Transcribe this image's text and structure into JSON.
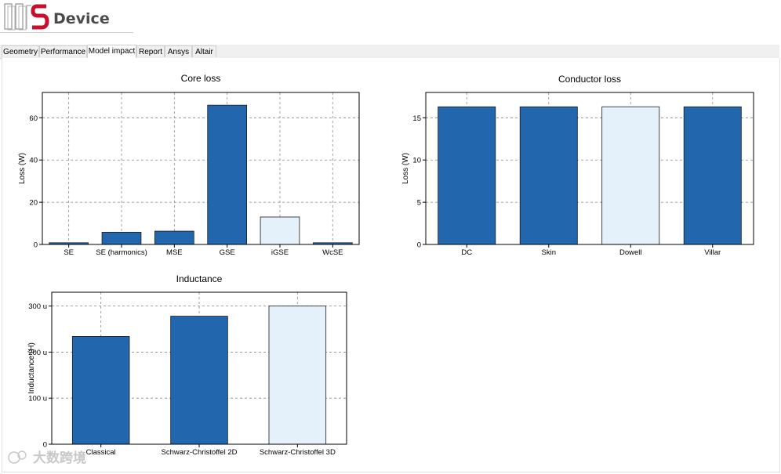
{
  "app": {
    "title": "Device"
  },
  "tabs": [
    {
      "label": "Geometry",
      "active": false
    },
    {
      "label": "Performance",
      "active": false
    },
    {
      "label": "Model impact",
      "active": true
    },
    {
      "label": "Report",
      "active": false
    },
    {
      "label": "Ansys",
      "active": false
    },
    {
      "label": "Altair",
      "active": false
    }
  ],
  "watermark": {
    "text": "大数跨境"
  },
  "colors": {
    "bar_dark": "#2267ad",
    "bar_light": "#e4f1fb",
    "grid": "#8a8a8a"
  },
  "chart_data": [
    {
      "type": "bar",
      "title": "Core loss",
      "ylabel": "Loss (W)",
      "xlabel": "",
      "categories": [
        "SE",
        "SE (harmonics)",
        "MSE",
        "GSE",
        "iGSE",
        "WcSE"
      ],
      "values": [
        0.8,
        5.8,
        6.3,
        66,
        13,
        0.8
      ],
      "highlight": [
        false,
        false,
        false,
        false,
        true,
        false
      ],
      "ylim": [
        0,
        72
      ],
      "yticks": [
        0,
        20,
        40,
        60
      ],
      "ytick_labels": [
        "0",
        "20",
        "40",
        "60"
      ],
      "grid": true
    },
    {
      "type": "bar",
      "title": "Conductor loss",
      "ylabel": "Loss (W)",
      "xlabel": "",
      "categories": [
        "DC",
        "Skin",
        "Dowell",
        "Villar"
      ],
      "values": [
        16.3,
        16.3,
        16.3,
        16.3
      ],
      "highlight": [
        false,
        false,
        true,
        false
      ],
      "ylim": [
        0,
        18
      ],
      "yticks": [
        0,
        5,
        10,
        15
      ],
      "ytick_labels": [
        "0",
        "5",
        "10",
        "15"
      ],
      "grid": true
    },
    {
      "type": "bar",
      "title": "Inductance",
      "ylabel": "Inductance (H)",
      "xlabel": "",
      "categories": [
        "Classical",
        "Schwarz-Christoffel 2D",
        "Schwarz-Christoffel 3D"
      ],
      "values": [
        0.000234,
        0.000278,
        0.0003
      ],
      "highlight": [
        false,
        false,
        true
      ],
      "ylim": [
        0,
        0.00033
      ],
      "yticks": [
        0,
        0.0001,
        0.0002,
        0.0003
      ],
      "ytick_labels": [
        "0",
        "100 u",
        "200 u",
        "300 u"
      ],
      "grid": true
    }
  ]
}
